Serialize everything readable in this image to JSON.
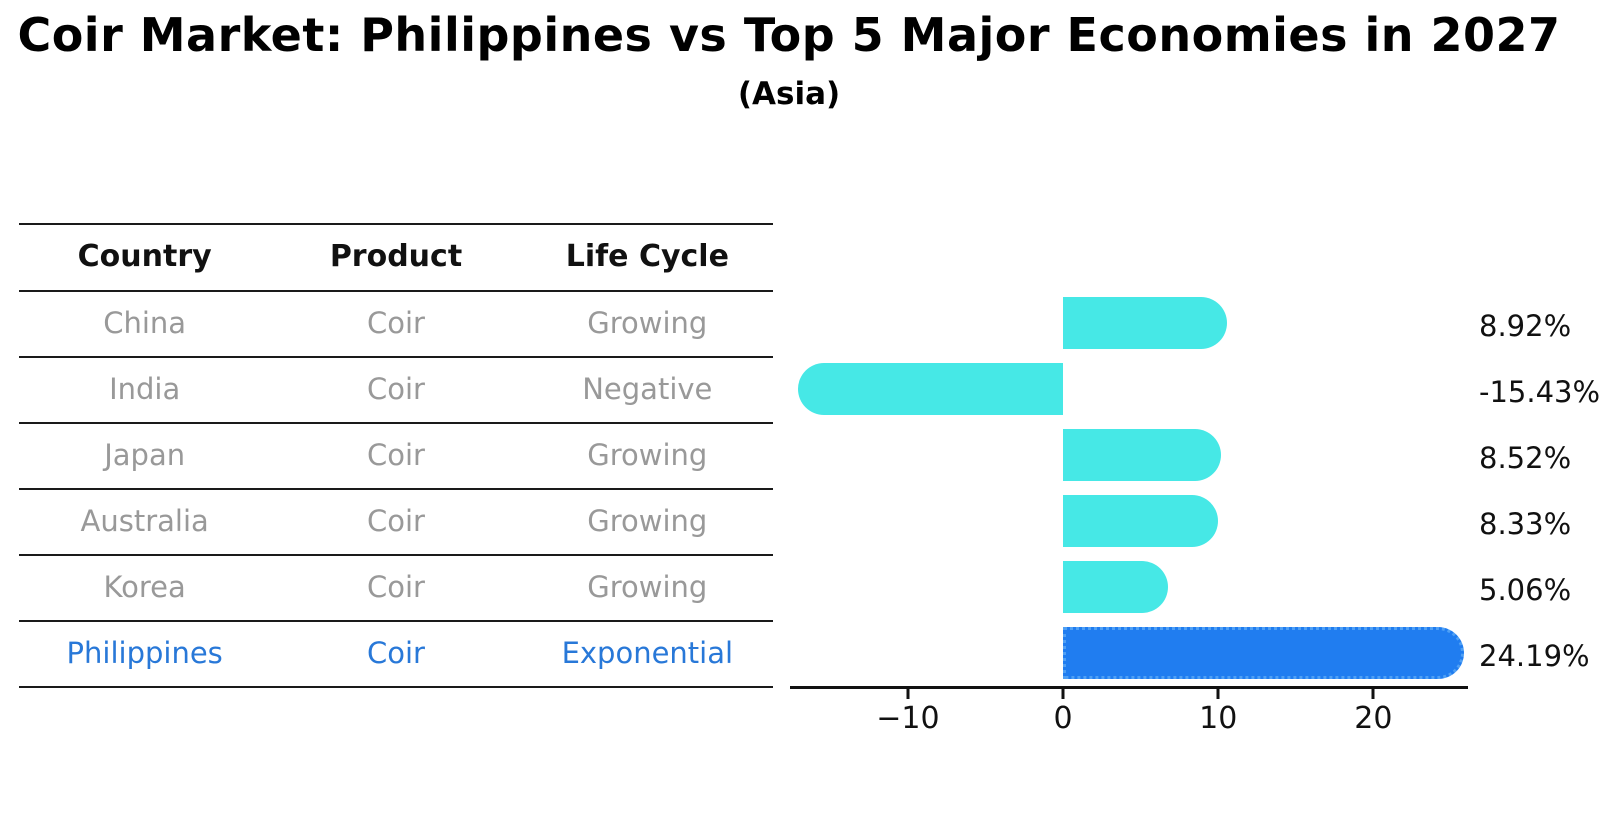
{
  "title": "Coir Market: Philippines vs Top 5 Major Economies in 2027",
  "subtitle": "(Asia)",
  "table": {
    "headers": [
      "Country",
      "Product",
      "Life Cycle"
    ],
    "rows": [
      {
        "country": "China",
        "product": "Coir",
        "life_cycle": "Growing",
        "highlight": false
      },
      {
        "country": "India",
        "product": "Coir",
        "life_cycle": "Negative",
        "highlight": false
      },
      {
        "country": "Japan",
        "product": "Coir",
        "life_cycle": "Growing",
        "highlight": false
      },
      {
        "country": "Australia",
        "product": "Coir",
        "life_cycle": "Growing",
        "highlight": false
      },
      {
        "country": "Korea",
        "product": "Coir",
        "life_cycle": "Growing",
        "highlight": false
      },
      {
        "country": "Philippines",
        "product": "Coir",
        "life_cycle": "Exponential",
        "highlight": true
      }
    ]
  },
  "chart_data": {
    "type": "bar",
    "orientation": "horizontal",
    "title": "Coir Market: Philippines vs Top 5 Major Economies in 2027",
    "subtitle": "(Asia)",
    "categories": [
      "China",
      "India",
      "Japan",
      "Australia",
      "Korea",
      "Philippines"
    ],
    "values": [
      8.92,
      -15.43,
      8.52,
      8.33,
      5.06,
      24.19
    ],
    "value_labels": [
      "8.92%",
      "-15.43%",
      "8.52%",
      "8.33%",
      "5.06%",
      "24.19%"
    ],
    "highlight_index": 5,
    "x_ticks": [
      -10,
      0,
      10,
      20
    ],
    "x_tick_labels": [
      "−10",
      "0",
      "10",
      "20"
    ],
    "xlim": [
      -17.6,
      26.1
    ],
    "grid": false,
    "legend": false,
    "xlabel": "",
    "ylabel": ""
  },
  "colors": {
    "bar": "#46e8e6",
    "highlight_bar": "#207df0",
    "highlight_text": "#2878d8",
    "table_body_text": "#999999",
    "table_header_text": "#111111",
    "axis": "#111111"
  }
}
